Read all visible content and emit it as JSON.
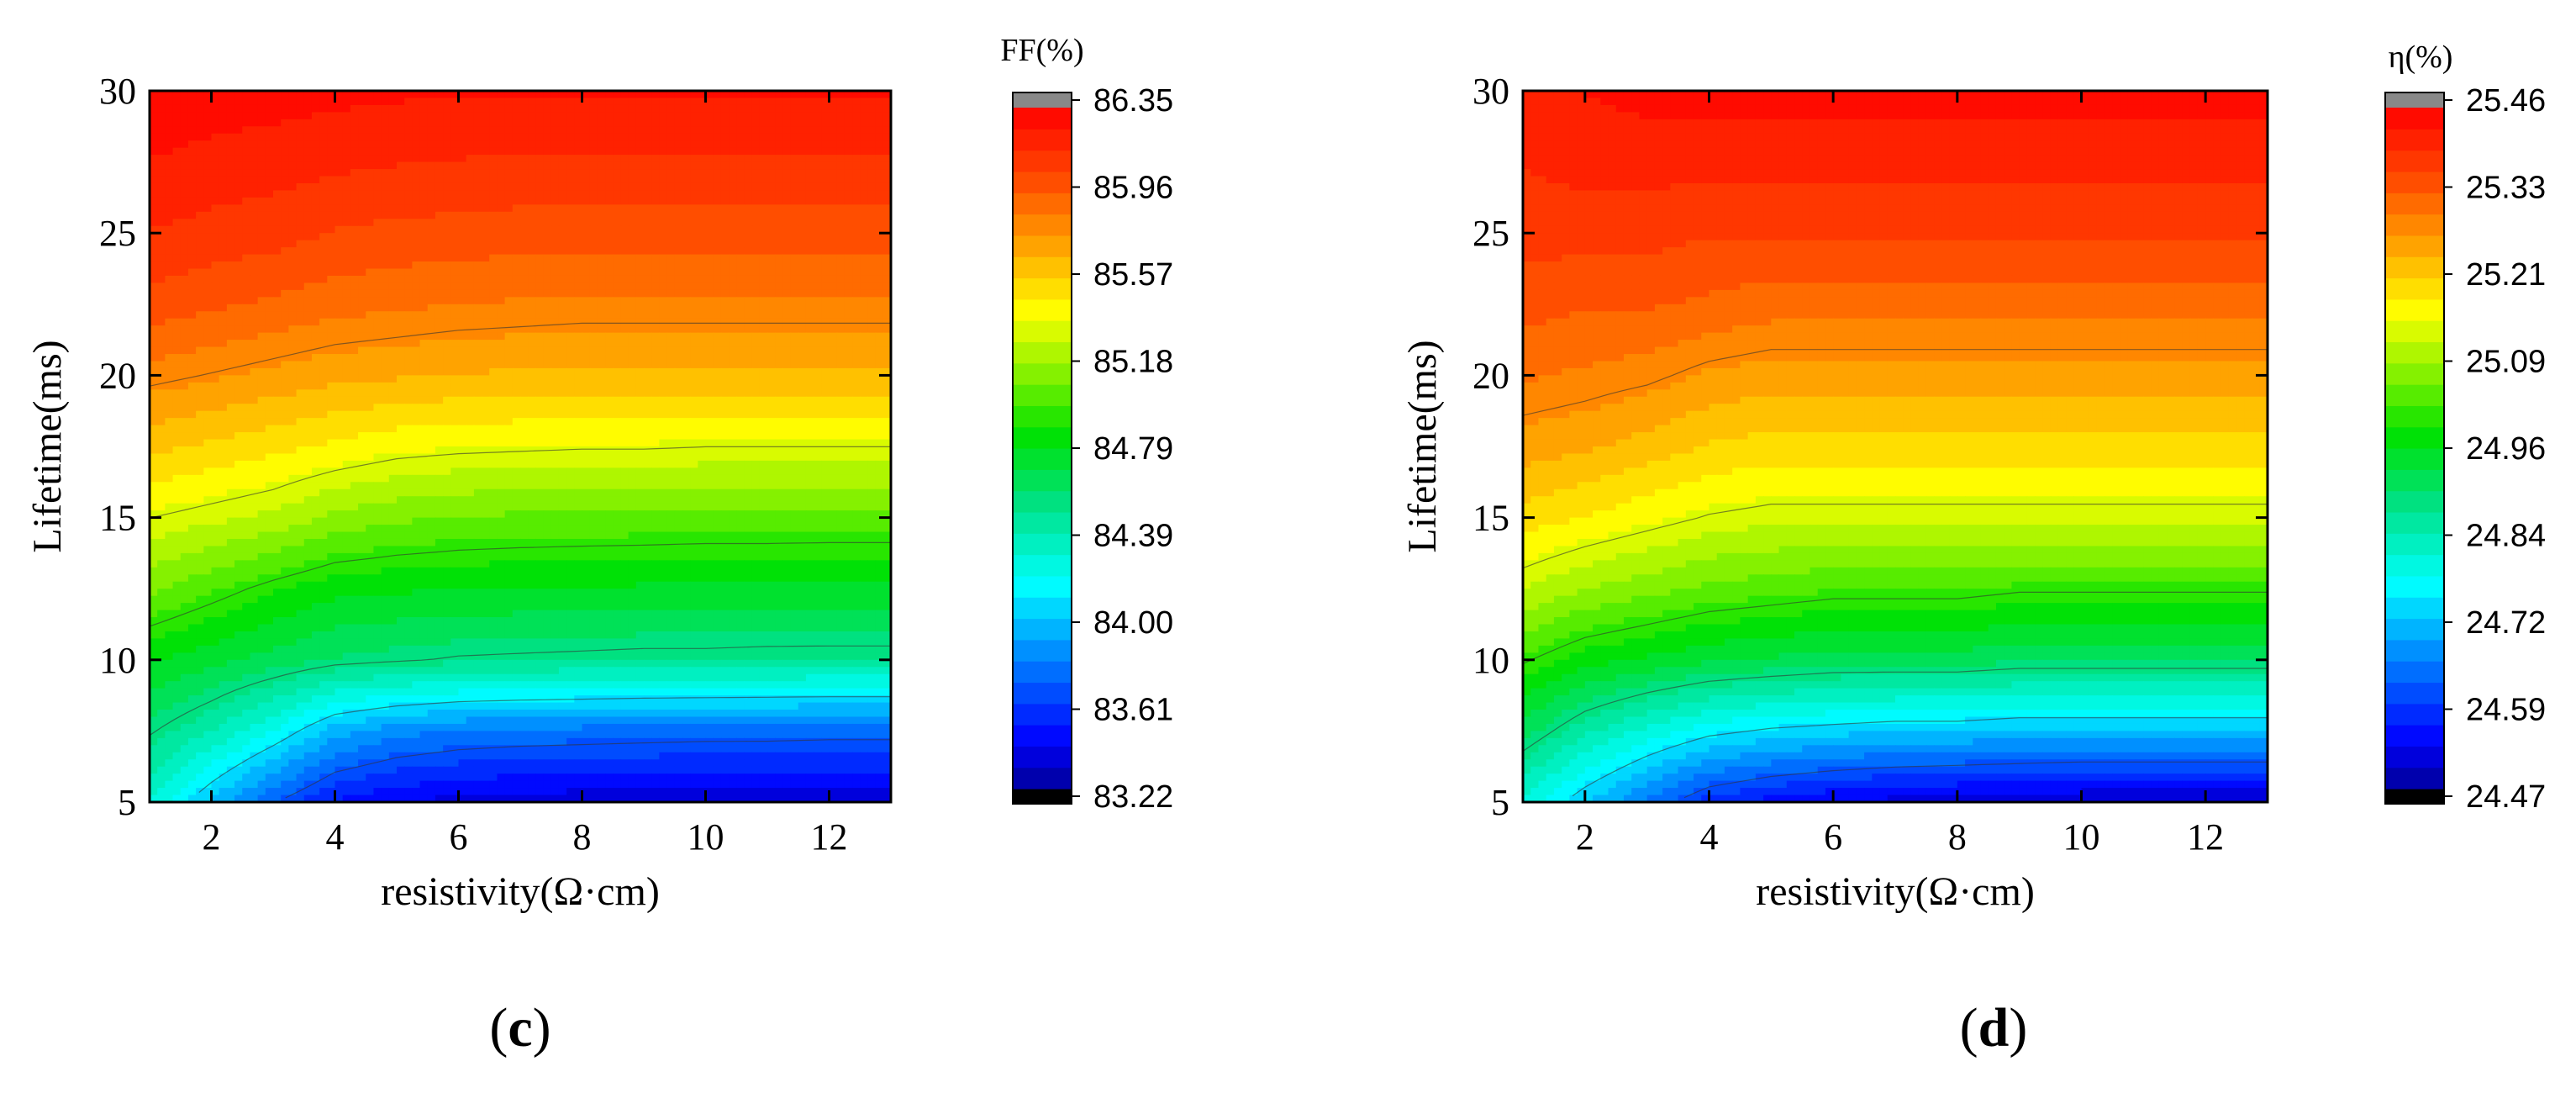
{
  "figure": {
    "panels": [
      "c",
      "d"
    ]
  },
  "chart_data": [
    {
      "type": "heatmap",
      "panel_label": "c",
      "title": "",
      "xlabel": "resistivity(Ω·cm)",
      "ylabel": "Lifetime(ms)",
      "xlim": [
        1,
        13
      ],
      "ylim": [
        5,
        30
      ],
      "xticks": [
        2,
        4,
        6,
        8,
        10,
        12
      ],
      "yticks": [
        5,
        10,
        15,
        20,
        25,
        30
      ],
      "colorbar": {
        "title": "FF(%)",
        "min": 83.22,
        "max": 86.35,
        "ticks": [
          "83.22",
          "83.61",
          "84.00",
          "84.39",
          "84.79",
          "85.18",
          "85.57",
          "85.96",
          "86.35"
        ]
      },
      "x": [
        1,
        2,
        3,
        4,
        5,
        6,
        7,
        8,
        9,
        10,
        11,
        12,
        13
      ],
      "y": [
        5,
        7.5,
        10,
        12.5,
        15,
        17.5,
        20,
        22.5,
        25,
        27.5,
        30
      ],
      "z": [
        [
          84.3,
          83.98,
          83.7,
          83.5,
          83.42,
          83.38,
          83.36,
          83.35,
          83.34,
          83.34,
          83.33,
          83.33,
          83.33
        ],
        [
          84.55,
          84.4,
          84.2,
          83.95,
          83.85,
          83.8,
          83.78,
          83.77,
          83.76,
          83.75,
          83.75,
          83.74,
          83.74
        ],
        [
          84.8,
          84.72,
          84.65,
          84.58,
          84.55,
          84.52,
          84.51,
          84.5,
          84.49,
          84.49,
          84.48,
          84.48,
          84.48
        ],
        [
          85.1,
          85.0,
          84.9,
          84.82,
          84.8,
          84.79,
          84.78,
          84.78,
          84.77,
          84.77,
          84.77,
          84.76,
          84.76
        ],
        [
          85.35,
          85.3,
          85.25,
          85.15,
          85.1,
          85.07,
          85.06,
          85.05,
          85.05,
          85.04,
          85.04,
          85.04,
          85.04
        ],
        [
          85.6,
          85.55,
          85.5,
          85.45,
          85.4,
          85.38,
          85.37,
          85.36,
          85.36,
          85.35,
          85.35,
          85.35,
          85.35
        ],
        [
          85.82,
          85.78,
          85.74,
          85.7,
          85.68,
          85.66,
          85.65,
          85.64,
          85.64,
          85.64,
          85.64,
          85.64,
          85.64
        ],
        [
          86.02,
          85.98,
          85.94,
          85.9,
          85.88,
          85.86,
          85.85,
          85.84,
          85.84,
          85.84,
          85.84,
          85.84,
          85.84
        ],
        [
          86.15,
          86.12,
          86.1,
          86.05,
          86.03,
          86.02,
          86.01,
          86.0,
          86.0,
          86.0,
          86.0,
          86.0,
          86.0
        ],
        [
          86.25,
          86.22,
          86.2,
          86.18,
          86.16,
          86.15,
          86.14,
          86.14,
          86.14,
          86.14,
          86.14,
          86.14,
          86.14
        ],
        [
          86.33,
          86.31,
          86.3,
          86.28,
          86.27,
          86.26,
          86.26,
          86.26,
          86.26,
          86.26,
          86.26,
          86.26,
          86.26
        ]
      ]
    },
    {
      "type": "heatmap",
      "panel_label": "d",
      "title": "",
      "xlabel": "resistivity(Ω·cm)",
      "ylabel": "Lifetime(ms)",
      "xlim": [
        1,
        13
      ],
      "ylim": [
        5,
        30
      ],
      "xticks": [
        2,
        4,
        6,
        8,
        10,
        12
      ],
      "yticks": [
        5,
        10,
        15,
        20,
        25,
        30
      ],
      "colorbar": {
        "title": "η(%)",
        "min": 24.47,
        "max": 25.46,
        "ticks": [
          "24.47",
          "24.59",
          "24.72",
          "24.84",
          "24.96",
          "25.09",
          "25.21",
          "25.33",
          "25.46"
        ]
      },
      "x": [
        1,
        2,
        3,
        4,
        5,
        6,
        7,
        8,
        9,
        10,
        11,
        12,
        13
      ],
      "y": [
        5,
        7.5,
        10,
        12.5,
        15,
        17.5,
        20,
        22.5,
        25,
        27.5,
        30
      ],
      "z": [
        [
          24.8,
          24.72,
          24.65,
          24.58,
          24.55,
          24.53,
          24.52,
          24.51,
          24.51,
          24.5,
          24.5,
          24.5,
          24.5
        ],
        [
          24.92,
          24.85,
          24.8,
          24.76,
          24.74,
          24.73,
          24.72,
          24.72,
          24.71,
          24.71,
          24.71,
          24.71,
          24.71
        ],
        [
          25.02,
          24.98,
          24.96,
          24.94,
          24.93,
          24.92,
          24.92,
          24.92,
          24.91,
          24.91,
          24.91,
          24.91,
          24.91
        ],
        [
          25.12,
          25.09,
          25.07,
          25.05,
          25.04,
          25.03,
          25.03,
          25.03,
          25.02,
          25.02,
          25.02,
          25.02,
          25.02
        ],
        [
          25.2,
          25.18,
          25.16,
          25.14,
          25.13,
          25.13,
          25.13,
          25.13,
          25.13,
          25.13,
          25.13,
          25.13,
          25.13
        ],
        [
          25.26,
          25.25,
          25.23,
          25.21,
          25.2,
          25.2,
          25.2,
          25.2,
          25.2,
          25.2,
          25.2,
          25.2,
          25.2
        ],
        [
          25.31,
          25.3,
          25.29,
          25.27,
          25.26,
          25.26,
          25.26,
          25.26,
          25.26,
          25.26,
          25.26,
          25.26,
          25.26
        ],
        [
          25.35,
          25.34,
          25.34,
          25.33,
          25.32,
          25.32,
          25.32,
          25.32,
          25.32,
          25.32,
          25.32,
          25.32,
          25.32
        ],
        [
          25.38,
          25.38,
          25.38,
          25.37,
          25.37,
          25.37,
          25.37,
          25.37,
          25.37,
          25.37,
          25.37,
          25.37,
          25.37
        ],
        [
          25.4,
          25.41,
          25.41,
          25.41,
          25.41,
          25.41,
          25.41,
          25.41,
          25.41,
          25.41,
          25.41,
          25.41,
          25.41
        ],
        [
          25.42,
          25.43,
          25.44,
          25.44,
          25.44,
          25.44,
          25.44,
          25.44,
          25.44,
          25.44,
          25.44,
          25.44,
          25.44
        ]
      ]
    }
  ]
}
